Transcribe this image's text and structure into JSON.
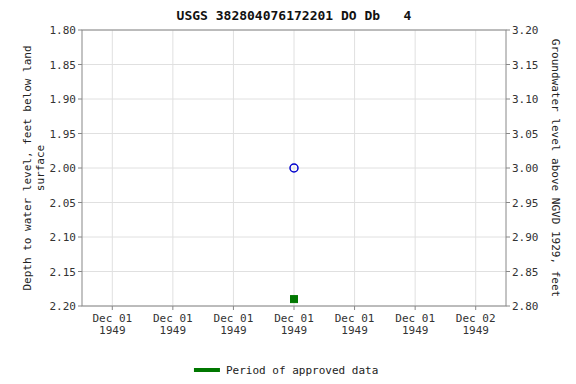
{
  "chart_data": {
    "type": "scatter",
    "title": "USGS 382804076172201 DO Db   4",
    "ylabel": "Depth to water level, feet below land\nsurface",
    "y2label": "Groundwater level above NGVD 1929, feet",
    "categories": [
      "Dec 01\n1949",
      "Dec 01\n1949",
      "Dec 01\n1949",
      "Dec 01\n1949",
      "Dec 01\n1949",
      "Dec 01\n1949",
      "Dec 02\n1949"
    ],
    "series": [
      {
        "color": "#0000cc",
        "marker": "open-circle",
        "values": [
          null,
          null,
          null,
          2.0,
          null,
          null,
          null
        ]
      },
      {
        "name": "Period of approved data",
        "color": "#007700",
        "marker": "square",
        "values": [
          null,
          null,
          null,
          2.19,
          null,
          null,
          null
        ]
      }
    ],
    "ylim": [
      2.2,
      1.8
    ],
    "yticks": [
      {
        "value": 1.8,
        "label": "1.80"
      },
      {
        "value": 1.85,
        "label": "1.85"
      },
      {
        "value": 1.9,
        "label": "1.90"
      },
      {
        "value": 1.95,
        "label": "1.95"
      },
      {
        "value": 2.0,
        "label": "2.00"
      },
      {
        "value": 2.05,
        "label": "2.05"
      },
      {
        "value": 2.1,
        "label": "2.10"
      },
      {
        "value": 2.15,
        "label": "2.15"
      },
      {
        "value": 2.2,
        "label": "2.20"
      }
    ],
    "y2lim": [
      2.8,
      3.2
    ],
    "y2ticks": [
      {
        "value": 2.8,
        "label": "2.80"
      },
      {
        "value": 2.85,
        "label": "2.85"
      },
      {
        "value": 2.9,
        "label": "2.90"
      },
      {
        "value": 2.95,
        "label": "2.95"
      },
      {
        "value": 3.0,
        "label": "3.00"
      },
      {
        "value": 3.05,
        "label": "3.05"
      },
      {
        "value": 3.1,
        "label": "3.10"
      },
      {
        "value": 3.15,
        "label": "3.15"
      },
      {
        "value": 3.2,
        "label": "3.20"
      }
    ],
    "grid": true,
    "legend": "bottom"
  }
}
